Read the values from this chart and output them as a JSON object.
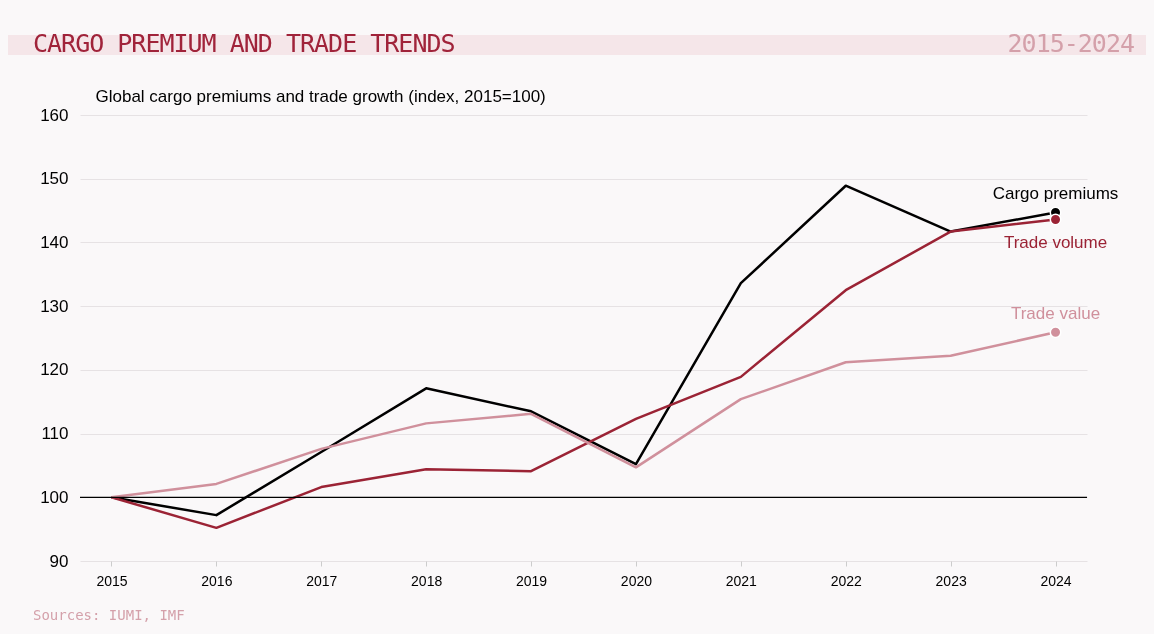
{
  "chart_data": {
    "type": "line",
    "title": "CARGO PREMIUM AND TRADE TRENDS",
    "subtitle": "2015-2024",
    "ylabel": "Global cargo premiums and trade growth (index, 2015=100)",
    "annotations": [
      "Sources: IUMI, IMF"
    ],
    "x": [
      2015,
      2016,
      2017,
      2018,
      2019,
      2020,
      2021,
      2022,
      2023,
      2024
    ],
    "series": [
      {
        "name": "Cargo premiums",
        "color": "#000000",
        "values": [
          100,
          97.2,
          107.1,
          117.1,
          113.5,
          105.2,
          133.6,
          148.9,
          141.7,
          144.7
        ]
      },
      {
        "name": "Trade volume",
        "color": "#9b2335",
        "values": [
          100,
          95.2,
          101.6,
          104.4,
          104.1,
          112.3,
          118.9,
          132.5,
          141.7,
          143.6
        ]
      },
      {
        "name": "Trade value",
        "color": "#d0909c",
        "values": [
          100,
          102.1,
          107.6,
          111.6,
          113.1,
          104.7,
          115.4,
          121.2,
          122.2,
          125.9
        ]
      }
    ],
    "xlim": [
      2014.7,
      2024.3
    ],
    "xticks": [
      2015,
      2016,
      2017,
      2018,
      2019,
      2020,
      2021,
      2022,
      2023,
      2024
    ],
    "ylim": [
      90,
      160
    ],
    "yticks": [
      90,
      100,
      110,
      120,
      130,
      140,
      150,
      160
    ],
    "ref_lines": [
      {
        "axis": "y",
        "value": 100,
        "color": "#000000"
      }
    ],
    "grid": "y",
    "legend": false,
    "line_style": "solid"
  }
}
